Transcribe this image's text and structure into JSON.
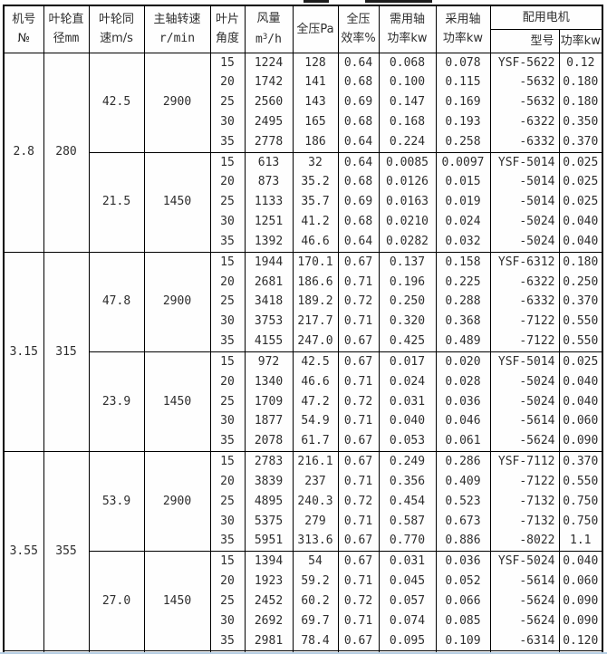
{
  "colors": {
    "border": "#000000",
    "text": "#2e2e2e",
    "bottom_cutoff_line": "#b5cde2"
  },
  "header": {
    "machine": [
      "机号",
      "№"
    ],
    "diameter": [
      "叶轮直",
      "径mm"
    ],
    "tip_speed": [
      "叶轮同",
      "速m/s"
    ],
    "rpm": [
      "主轴转速",
      "r/min"
    ],
    "angle": [
      "叶片",
      "角度"
    ],
    "airflow_label": "风量",
    "airflow_unit": {
      "base": "m",
      "sup": "3",
      "rest": "/h"
    },
    "pressure": "全压Pa",
    "efficiency": [
      "全压",
      "效率%"
    ],
    "required": [
      "需用轴",
      "功率kw"
    ],
    "adopted": [
      "采用轴",
      "功率kw"
    ],
    "motor": "配用电机",
    "motor_model": "型号",
    "motor_power": "功率kw"
  },
  "groups": [
    {
      "machine_no": "2.8",
      "diameter": "280",
      "blocks": [
        {
          "tip_speed": "42.5",
          "rpm": "2900",
          "rows": [
            [
              "15",
              "1224",
              "128",
              "0.64",
              "0.068",
              "0.078",
              "YSF-5622",
              "0.12"
            ],
            [
              "20",
              "1742",
              "141",
              "0.68",
              "0.100",
              "0.115",
              "-5632",
              "0.180"
            ],
            [
              "25",
              "2560",
              "143",
              "0.69",
              "0.147",
              "0.169",
              "-5632",
              "0.180"
            ],
            [
              "30",
              "2495",
              "165",
              "0.68",
              "0.168",
              "0.193",
              "-6322",
              "0.350"
            ],
            [
              "35",
              "2778",
              "186",
              "0.64",
              "0.224",
              "0.258",
              "-6332",
              "0.370"
            ]
          ]
        },
        {
          "tip_speed": "21.5",
          "rpm": "1450",
          "rows": [
            [
              "15",
              "613",
              "32",
              "0.64",
              "0.0085",
              "0.0097",
              "YSF-5014",
              "0.025"
            ],
            [
              "20",
              "873",
              "35.2",
              "0.68",
              "0.0126",
              "0.015",
              "-5014",
              "0.025"
            ],
            [
              "25",
              "1133",
              "35.7",
              "0.69",
              "0.0163",
              "0.019",
              "-5014",
              "0.025"
            ],
            [
              "30",
              "1251",
              "41.2",
              "0.68",
              "0.0210",
              "0.024",
              "-5024",
              "0.040"
            ],
            [
              "35",
              "1392",
              "46.6",
              "0.64",
              "0.0282",
              "0.032",
              "-5024",
              "0.040"
            ]
          ]
        }
      ]
    },
    {
      "machine_no": "3.15",
      "diameter": "315",
      "blocks": [
        {
          "tip_speed": "47.8",
          "rpm": "2900",
          "rows": [
            [
              "15",
              "1944",
              "170.1",
              "0.67",
              "0.137",
              "0.158",
              "YSF-6312",
              "0.180"
            ],
            [
              "20",
              "2681",
              "186.6",
              "0.71",
              "0.196",
              "0.225",
              "-6322",
              "0.250"
            ],
            [
              "25",
              "3418",
              "189.2",
              "0.72",
              "0.250",
              "0.288",
              "-6332",
              "0.370"
            ],
            [
              "30",
              "3753",
              "217.7",
              "0.71",
              "0.320",
              "0.368",
              "-7122",
              "0.550"
            ],
            [
              "35",
              "4155",
              "247.0",
              "0.67",
              "0.425",
              "0.489",
              "-7122",
              "0.550"
            ]
          ]
        },
        {
          "tip_speed": "23.9",
          "rpm": "1450",
          "rows": [
            [
              "15",
              "972",
              "42.5",
              "0.67",
              "0.017",
              "0.020",
              "YSF-5014",
              "0.025"
            ],
            [
              "20",
              "1340",
              "46.6",
              "0.71",
              "0.024",
              "0.028",
              "-5024",
              "0.040"
            ],
            [
              "25",
              "1709",
              "47.2",
              "0.72",
              "0.031",
              "0.036",
              "-5024",
              "0.040"
            ],
            [
              "30",
              "1877",
              "54.9",
              "0.71",
              "0.040",
              "0.046",
              "-5614",
              "0.060"
            ],
            [
              "35",
              "2078",
              "61.7",
              "0.67",
              "0.053",
              "0.061",
              "-5624",
              "0.090"
            ]
          ]
        }
      ]
    },
    {
      "machine_no": "3.55",
      "diameter": "355",
      "blocks": [
        {
          "tip_speed": "53.9",
          "rpm": "2900",
          "rows": [
            [
              "15",
              "2783",
              "216.1",
              "0.67",
              "0.249",
              "0.286",
              "YSF-7112",
              "0.370"
            ],
            [
              "20",
              "3839",
              "237",
              "0.71",
              "0.356",
              "0.409",
              "-7122",
              "0.550"
            ],
            [
              "25",
              "4895",
              "240.3",
              "0.72",
              "0.454",
              "0.523",
              "-7132",
              "0.750"
            ],
            [
              "30",
              "5375",
              "279",
              "0.71",
              "0.587",
              "0.673",
              "-7132",
              "0.750"
            ],
            [
              "35",
              "5951",
              "313.6",
              "0.67",
              "0.770",
              "0.886",
              "-8022",
              "1.1"
            ]
          ]
        },
        {
          "tip_speed": "27.0",
          "rpm": "1450",
          "rows": [
            [
              "15",
              "1394",
              "54",
              "0.67",
              "0.031",
              "0.036",
              "YSF-5024",
              "0.040"
            ],
            [
              "20",
              "1923",
              "59.2",
              "0.71",
              "0.045",
              "0.052",
              "-5614",
              "0.060"
            ],
            [
              "25",
              "2452",
              "60.2",
              "0.72",
              "0.057",
              "0.066",
              "-5624",
              "0.090"
            ],
            [
              "30",
              "2692",
              "69.7",
              "0.71",
              "0.074",
              "0.085",
              "-5624",
              "0.090"
            ],
            [
              "35",
              "2981",
              "78.4",
              "0.67",
              "0.095",
              "0.109",
              "-6314",
              "0.120"
            ]
          ]
        }
      ]
    }
  ]
}
